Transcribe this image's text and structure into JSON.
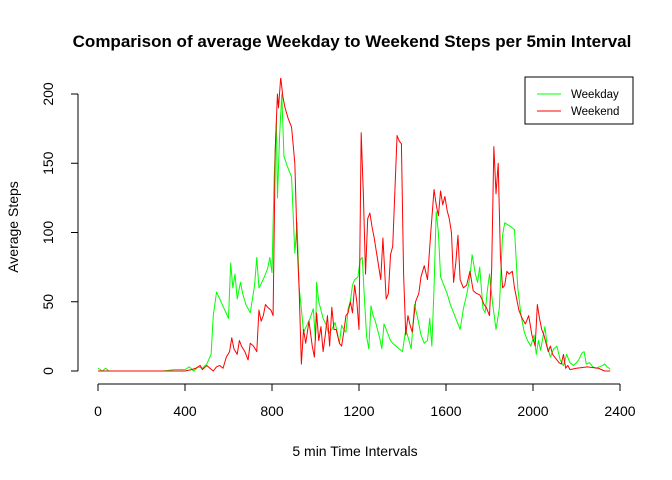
{
  "chart_data": {
    "type": "line",
    "title": "Comparison of average Weekday to Weekend Steps per 5min Interval",
    "xlabel": "5 min Time Intervals",
    "ylabel": "Average Steps",
    "xlim": [
      0,
      2400
    ],
    "ylim": [
      0,
      210
    ],
    "xticks": [
      0,
      400,
      800,
      1200,
      1600,
      2000,
      2400
    ],
    "yticks": [
      0,
      50,
      100,
      150,
      200
    ],
    "grid": false,
    "legend_position": "top-right",
    "series": [
      {
        "name": "Weekday",
        "color": "#00ff00",
        "points": [
          [
            0,
            2
          ],
          [
            20,
            0
          ],
          [
            35,
            2
          ],
          [
            50,
            0
          ],
          [
            100,
            0
          ],
          [
            200,
            0
          ],
          [
            300,
            0
          ],
          [
            350,
            1
          ],
          [
            400,
            1
          ],
          [
            420,
            3
          ],
          [
            440,
            0
          ],
          [
            460,
            3
          ],
          [
            480,
            2
          ],
          [
            500,
            5
          ],
          [
            520,
            12
          ],
          [
            530,
            40
          ],
          [
            545,
            57
          ],
          [
            560,
            52
          ],
          [
            580,
            45
          ],
          [
            600,
            38
          ],
          [
            610,
            78
          ],
          [
            620,
            60
          ],
          [
            630,
            70
          ],
          [
            640,
            52
          ],
          [
            655,
            64
          ],
          [
            665,
            56
          ],
          [
            680,
            48
          ],
          [
            700,
            42
          ],
          [
            720,
            62
          ],
          [
            730,
            82
          ],
          [
            740,
            60
          ],
          [
            750,
            63
          ],
          [
            765,
            68
          ],
          [
            780,
            74
          ],
          [
            790,
            82
          ],
          [
            800,
            71
          ],
          [
            810,
            140
          ],
          [
            820,
            180
          ],
          [
            825,
            125
          ],
          [
            835,
            170
          ],
          [
            845,
            200
          ],
          [
            855,
            155
          ],
          [
            870,
            148
          ],
          [
            890,
            140
          ],
          [
            905,
            85
          ],
          [
            915,
            107
          ],
          [
            925,
            60
          ],
          [
            935,
            45
          ],
          [
            945,
            28
          ],
          [
            960,
            33
          ],
          [
            975,
            38
          ],
          [
            990,
            45
          ],
          [
            1000,
            22
          ],
          [
            1005,
            64
          ],
          [
            1015,
            50
          ],
          [
            1025,
            44
          ],
          [
            1035,
            38
          ],
          [
            1050,
            33
          ],
          [
            1060,
            27
          ],
          [
            1075,
            30
          ],
          [
            1090,
            35
          ],
          [
            1100,
            28
          ],
          [
            1110,
            20
          ],
          [
            1120,
            33
          ],
          [
            1130,
            30
          ],
          [
            1140,
            28
          ],
          [
            1150,
            45
          ],
          [
            1160,
            50
          ],
          [
            1170,
            62
          ],
          [
            1180,
            66
          ],
          [
            1195,
            68
          ],
          [
            1205,
            80
          ],
          [
            1215,
            82
          ],
          [
            1225,
            52
          ],
          [
            1235,
            25
          ],
          [
            1245,
            16
          ],
          [
            1255,
            47
          ],
          [
            1265,
            40
          ],
          [
            1275,
            36
          ],
          [
            1285,
            30
          ],
          [
            1295,
            24
          ],
          [
            1305,
            16
          ],
          [
            1315,
            34
          ],
          [
            1330,
            28
          ],
          [
            1345,
            22
          ],
          [
            1355,
            20
          ],
          [
            1370,
            18
          ],
          [
            1385,
            16
          ],
          [
            1400,
            14
          ],
          [
            1415,
            30
          ],
          [
            1430,
            22
          ],
          [
            1440,
            16
          ],
          [
            1455,
            48
          ],
          [
            1470,
            38
          ],
          [
            1485,
            26
          ],
          [
            1500,
            20
          ],
          [
            1515,
            22
          ],
          [
            1525,
            38
          ],
          [
            1535,
            18
          ],
          [
            1545,
            60
          ],
          [
            1555,
            115
          ],
          [
            1565,
            100
          ],
          [
            1575,
            68
          ],
          [
            1590,
            62
          ],
          [
            1605,
            56
          ],
          [
            1620,
            48
          ],
          [
            1635,
            42
          ],
          [
            1650,
            36
          ],
          [
            1665,
            30
          ],
          [
            1680,
            45
          ],
          [
            1695,
            55
          ],
          [
            1710,
            68
          ],
          [
            1720,
            84
          ],
          [
            1735,
            70
          ],
          [
            1745,
            64
          ],
          [
            1755,
            75
          ],
          [
            1770,
            45
          ],
          [
            1780,
            42
          ],
          [
            1790,
            58
          ],
          [
            1800,
            70
          ],
          [
            1815,
            48
          ],
          [
            1830,
            30
          ],
          [
            1845,
            45
          ],
          [
            1860,
            98
          ],
          [
            1870,
            107
          ],
          [
            1880,
            106
          ],
          [
            1900,
            104
          ],
          [
            1915,
            102
          ],
          [
            1930,
            60
          ],
          [
            1945,
            40
          ],
          [
            1960,
            28
          ],
          [
            1975,
            22
          ],
          [
            1990,
            18
          ],
          [
            2005,
            26
          ],
          [
            2015,
            12
          ],
          [
            2025,
            22
          ],
          [
            2035,
            15
          ],
          [
            2045,
            24
          ],
          [
            2055,
            32
          ],
          [
            2065,
            18
          ],
          [
            2080,
            10
          ],
          [
            2095,
            16
          ],
          [
            2110,
            18
          ],
          [
            2125,
            8
          ],
          [
            2140,
            4
          ],
          [
            2155,
            12
          ],
          [
            2170,
            6
          ],
          [
            2185,
            4
          ],
          [
            2200,
            6
          ],
          [
            2210,
            8
          ],
          [
            2225,
            13
          ],
          [
            2235,
            14
          ],
          [
            2245,
            5
          ],
          [
            2260,
            6
          ],
          [
            2275,
            3
          ],
          [
            2290,
            2
          ],
          [
            2305,
            3
          ],
          [
            2320,
            4
          ],
          [
            2330,
            5
          ],
          [
            2340,
            3
          ],
          [
            2350,
            2
          ],
          [
            2355,
            1
          ]
        ]
      },
      {
        "name": "Weekend",
        "color": "#ff0000",
        "points": [
          [
            0,
            0
          ],
          [
            50,
            0
          ],
          [
            100,
            0
          ],
          [
            200,
            0
          ],
          [
            300,
            0
          ],
          [
            400,
            0
          ],
          [
            430,
            1
          ],
          [
            450,
            2
          ],
          [
            470,
            4
          ],
          [
            480,
            1
          ],
          [
            500,
            4
          ],
          [
            515,
            2
          ],
          [
            530,
            0
          ],
          [
            545,
            3
          ],
          [
            560,
            4
          ],
          [
            575,
            2
          ],
          [
            590,
            10
          ],
          [
            605,
            14
          ],
          [
            615,
            24
          ],
          [
            625,
            16
          ],
          [
            640,
            12
          ],
          [
            650,
            22
          ],
          [
            660,
            18
          ],
          [
            675,
            14
          ],
          [
            690,
            8
          ],
          [
            700,
            20
          ],
          [
            715,
            18
          ],
          [
            730,
            14
          ],
          [
            740,
            44
          ],
          [
            750,
            36
          ],
          [
            760,
            40
          ],
          [
            770,
            48
          ],
          [
            780,
            46
          ],
          [
            795,
            44
          ],
          [
            805,
            40
          ],
          [
            815,
            160
          ],
          [
            825,
            200
          ],
          [
            830,
            190
          ],
          [
            840,
            212
          ],
          [
            850,
            198
          ],
          [
            860,
            190
          ],
          [
            875,
            182
          ],
          [
            890,
            176
          ],
          [
            905,
            150
          ],
          [
            915,
            95
          ],
          [
            925,
            58
          ],
          [
            935,
            5
          ],
          [
            945,
            30
          ],
          [
            955,
            20
          ],
          [
            970,
            36
          ],
          [
            985,
            18
          ],
          [
            995,
            10
          ],
          [
            1005,
            42
          ],
          [
            1015,
            22
          ],
          [
            1025,
            32
          ],
          [
            1035,
            14
          ],
          [
            1045,
            26
          ],
          [
            1055,
            40
          ],
          [
            1065,
            18
          ],
          [
            1075,
            46
          ],
          [
            1085,
            30
          ],
          [
            1095,
            30
          ],
          [
            1110,
            20
          ],
          [
            1120,
            18
          ],
          [
            1130,
            28
          ],
          [
            1140,
            40
          ],
          [
            1150,
            42
          ],
          [
            1160,
            50
          ],
          [
            1170,
            42
          ],
          [
            1180,
            62
          ],
          [
            1190,
            50
          ],
          [
            1200,
            30
          ],
          [
            1210,
            172
          ],
          [
            1220,
            128
          ],
          [
            1230,
            70
          ],
          [
            1240,
            110
          ],
          [
            1250,
            114
          ],
          [
            1260,
            104
          ],
          [
            1270,
            96
          ],
          [
            1280,
            86
          ],
          [
            1290,
            76
          ],
          [
            1300,
            66
          ],
          [
            1310,
            96
          ],
          [
            1325,
            52
          ],
          [
            1335,
            56
          ],
          [
            1345,
            84
          ],
          [
            1355,
            90
          ],
          [
            1365,
            130
          ],
          [
            1375,
            170
          ],
          [
            1385,
            166
          ],
          [
            1395,
            164
          ],
          [
            1405,
            70
          ],
          [
            1415,
            26
          ],
          [
            1425,
            40
          ],
          [
            1435,
            33
          ],
          [
            1445,
            28
          ],
          [
            1460,
            50
          ],
          [
            1475,
            56
          ],
          [
            1485,
            68
          ],
          [
            1500,
            76
          ],
          [
            1515,
            66
          ],
          [
            1530,
            100
          ],
          [
            1545,
            131
          ],
          [
            1555,
            120
          ],
          [
            1565,
            112
          ],
          [
            1575,
            130
          ],
          [
            1585,
            120
          ],
          [
            1595,
            126
          ],
          [
            1605,
            116
          ],
          [
            1615,
            110
          ],
          [
            1625,
            100
          ],
          [
            1635,
            64
          ],
          [
            1645,
            78
          ],
          [
            1655,
            98
          ],
          [
            1665,
            66
          ],
          [
            1680,
            60
          ],
          [
            1695,
            62
          ],
          [
            1710,
            72
          ],
          [
            1725,
            58
          ],
          [
            1740,
            56
          ],
          [
            1755,
            55
          ],
          [
            1765,
            52
          ],
          [
            1775,
            48
          ],
          [
            1785,
            46
          ],
          [
            1800,
            40
          ],
          [
            1810,
            74
          ],
          [
            1820,
            162
          ],
          [
            1830,
            128
          ],
          [
            1840,
            150
          ],
          [
            1850,
            84
          ],
          [
            1860,
            60
          ],
          [
            1870,
            62
          ],
          [
            1880,
            72
          ],
          [
            1890,
            70
          ],
          [
            1905,
            72
          ],
          [
            1915,
            60
          ],
          [
            1925,
            52
          ],
          [
            1935,
            44
          ],
          [
            1950,
            38
          ],
          [
            1965,
            34
          ],
          [
            1980,
            40
          ],
          [
            1995,
            26
          ],
          [
            2010,
            18
          ],
          [
            2020,
            48
          ],
          [
            2030,
            38
          ],
          [
            2040,
            30
          ],
          [
            2050,
            26
          ],
          [
            2060,
            20
          ],
          [
            2070,
            14
          ],
          [
            2080,
            18
          ],
          [
            2090,
            12
          ],
          [
            2100,
            10
          ],
          [
            2110,
            8
          ],
          [
            2120,
            6
          ],
          [
            2130,
            5
          ],
          [
            2140,
            12
          ],
          [
            2150,
            2
          ],
          [
            2160,
            4
          ],
          [
            2170,
            1
          ],
          [
            2200,
            2
          ],
          [
            2250,
            3
          ],
          [
            2300,
            2
          ],
          [
            2330,
            0
          ],
          [
            2355,
            0
          ]
        ]
      }
    ]
  }
}
